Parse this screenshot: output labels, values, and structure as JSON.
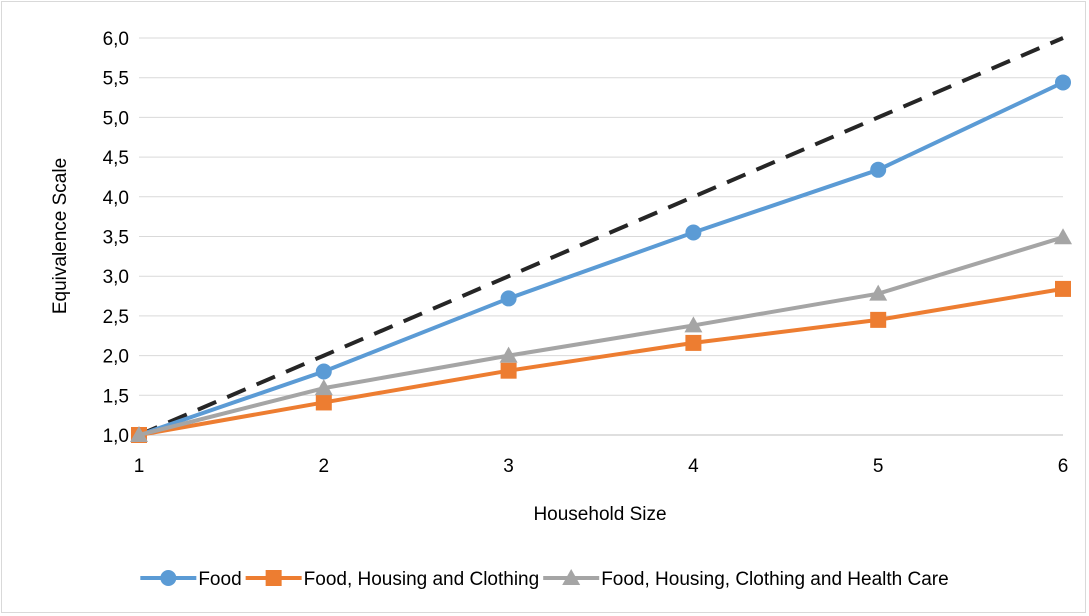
{
  "chart_data": {
    "type": "line",
    "title": "",
    "xlabel": "Household Size",
    "ylabel": "Equivalence Scale",
    "x": [
      1,
      2,
      3,
      4,
      5,
      6
    ],
    "ylim": [
      1.0,
      6.0
    ],
    "y_ticks": [
      "1,0",
      "1,5",
      "2,0",
      "2,5",
      "3,0",
      "3,5",
      "4,0",
      "4,5",
      "5,0",
      "5,5",
      "6,0"
    ],
    "x_ticks": [
      "1",
      "2",
      "3",
      "4",
      "5",
      "6"
    ],
    "grid": "horizontal",
    "legend_position": "bottom",
    "series": [
      {
        "name": "Food",
        "values": [
          1.0,
          1.8,
          2.72,
          3.55,
          4.34,
          5.44
        ],
        "color": "#5b9bd5",
        "marker": "circle",
        "dash": false,
        "legend": true
      },
      {
        "name": "Food, Housing and Clothing",
        "values": [
          1.0,
          1.41,
          1.81,
          2.16,
          2.45,
          2.84
        ],
        "color": "#ed7d31",
        "marker": "square",
        "dash": false,
        "legend": true
      },
      {
        "name": "Food, Housing, Clothing and Health Care",
        "values": [
          1.0,
          1.59,
          2.0,
          2.38,
          2.78,
          3.49
        ],
        "color": "#a5a5a5",
        "marker": "triangle",
        "dash": false,
        "legend": true
      },
      {
        "name": "",
        "values": [
          1.0,
          2.0,
          3.0,
          4.0,
          5.0,
          6.0
        ],
        "color": "#262626",
        "marker": "none",
        "dash": true,
        "legend": false
      }
    ]
  }
}
